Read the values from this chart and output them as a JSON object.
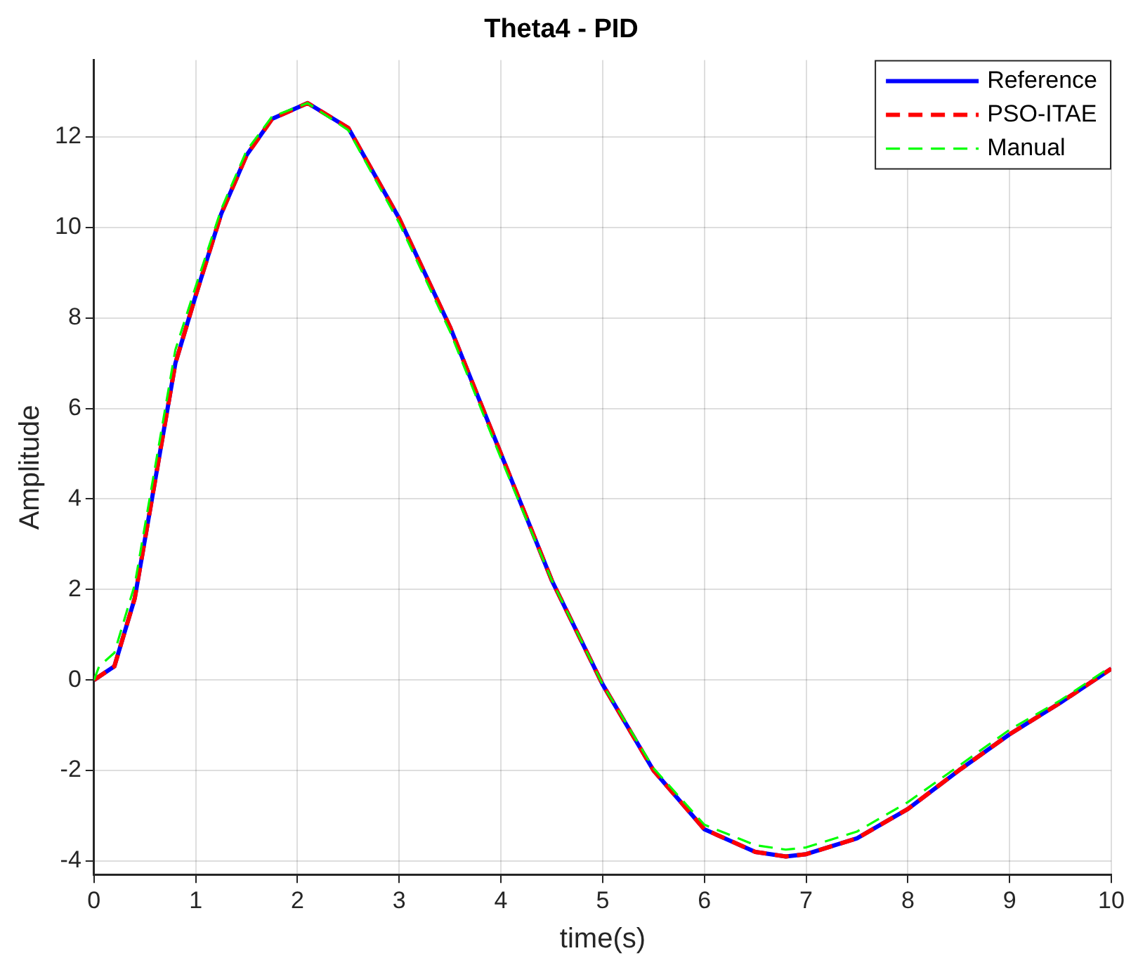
{
  "chart_data": {
    "type": "line",
    "title": "Theta4 - PID",
    "xlabel": "time(s)",
    "ylabel": "Amplitude",
    "xlim": [
      0,
      10
    ],
    "ylim": [
      -4.3,
      13.7
    ],
    "xticks": [
      0,
      1,
      2,
      3,
      4,
      5,
      6,
      7,
      8,
      9,
      10
    ],
    "yticks": [
      -4,
      -2,
      0,
      2,
      4,
      6,
      8,
      10,
      12
    ],
    "grid": true,
    "legend": "top right",
    "marker": "none",
    "series": [
      {
        "name": "Reference",
        "color": "#0000ff",
        "line_style": "solid",
        "x": [
          0,
          0.2,
          0.4,
          0.6,
          0.8,
          1,
          1.25,
          1.5,
          1.75,
          2.1,
          2.5,
          3,
          3.5,
          4,
          4.5,
          5,
          5.5,
          6,
          6.5,
          6.8,
          7,
          7.5,
          8,
          8.5,
          9,
          9.5,
          10
        ],
        "values": [
          0,
          0.3,
          1.8,
          4.4,
          7,
          8.5,
          10.3,
          11.6,
          12.4,
          12.75,
          12.2,
          10.2,
          7.8,
          5,
          2.2,
          -0.1,
          -2,
          -3.3,
          -3.8,
          -3.9,
          -3.85,
          -3.5,
          -2.85,
          -2,
          -1.2,
          -0.5,
          0.25
        ]
      },
      {
        "name": "PSO-ITAE",
        "color": "#ff0000",
        "line_style": "dashed",
        "x": [
          0,
          0.2,
          0.4,
          0.6,
          0.8,
          1,
          1.25,
          1.5,
          1.75,
          2.1,
          2.5,
          3,
          3.5,
          4,
          4.5,
          5,
          5.5,
          6,
          6.5,
          6.8,
          7,
          7.5,
          8,
          8.5,
          9,
          9.5,
          10
        ],
        "values": [
          0,
          0.3,
          1.8,
          4.4,
          7,
          8.5,
          10.3,
          11.6,
          12.4,
          12.75,
          12.2,
          10.2,
          7.8,
          5,
          2.2,
          -0.1,
          -2,
          -3.3,
          -3.8,
          -3.9,
          -3.85,
          -3.5,
          -2.85,
          -2,
          -1.2,
          -0.5,
          0.25
        ]
      },
      {
        "name": "Manual",
        "color": "#00ff00",
        "line_style": "dashed",
        "x": [
          0,
          0.05,
          0.2,
          0.4,
          0.6,
          0.8,
          1,
          1.25,
          1.5,
          1.75,
          2.1,
          2.5,
          3,
          3.5,
          4,
          4.5,
          5,
          5.5,
          6,
          6.5,
          6.8,
          7,
          7.5,
          8,
          8.5,
          9,
          9.5,
          10
        ],
        "values": [
          0,
          0.3,
          0.6,
          2.1,
          4.7,
          7.3,
          8.7,
          10.4,
          11.7,
          12.45,
          12.75,
          12.15,
          10.1,
          7.7,
          4.9,
          2.2,
          -0.1,
          -1.95,
          -3.2,
          -3.65,
          -3.75,
          -3.7,
          -3.35,
          -2.7,
          -1.9,
          -1.1,
          -0.45,
          0.3
        ]
      }
    ]
  }
}
